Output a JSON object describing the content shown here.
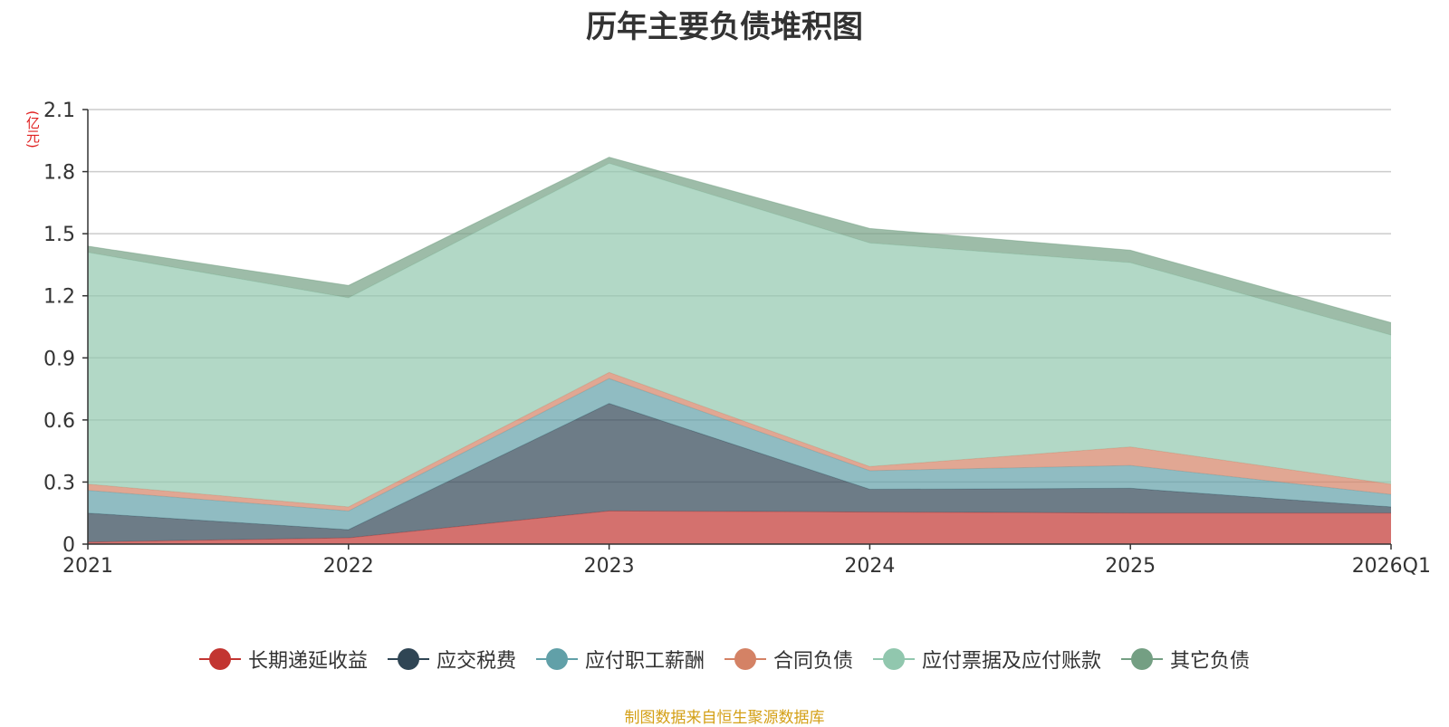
{
  "chart_data": {
    "type": "area",
    "stacked": true,
    "title": "历年主要负债堆积图",
    "unit": "(亿元)",
    "categories": [
      "2021",
      "2022",
      "2023",
      "2024",
      "2025",
      "2026Q1"
    ],
    "ylim": [
      0,
      2.1
    ],
    "yticks": [
      "0",
      "0.3",
      "0.6",
      "0.9",
      "1.2",
      "1.5",
      "1.8",
      "2.1"
    ],
    "ytick_values": [
      0,
      0.3,
      0.6,
      0.9,
      1.2,
      1.5,
      1.8,
      2.1
    ],
    "grid": true,
    "legend_position": "bottom",
    "series": [
      {
        "name": "长期递延收益",
        "color": "#c23531",
        "values": [
          0.01,
          0.03,
          0.16,
          0.155,
          0.15,
          0.15
        ]
      },
      {
        "name": "应交税费",
        "color": "#2f4554",
        "values": [
          0.14,
          0.04,
          0.52,
          0.11,
          0.12,
          0.03
        ]
      },
      {
        "name": "应付职工薪酬",
        "color": "#61a0a8",
        "values": [
          0.11,
          0.09,
          0.12,
          0.09,
          0.11,
          0.06
        ]
      },
      {
        "name": "合同负债",
        "color": "#d48265",
        "values": [
          0.03,
          0.02,
          0.03,
          0.02,
          0.09,
          0.05
        ]
      },
      {
        "name": "应付票据及应付账款",
        "color": "#91c7ae",
        "values": [
          1.12,
          1.01,
          1.01,
          1.08,
          0.89,
          0.72
        ]
      },
      {
        "name": "其它负债",
        "color": "#749f83",
        "values": [
          0.03,
          0.06,
          0.03,
          0.07,
          0.06,
          0.06
        ]
      }
    ]
  },
  "footer": {
    "source": "制图数据来自恒生聚源数据库"
  }
}
